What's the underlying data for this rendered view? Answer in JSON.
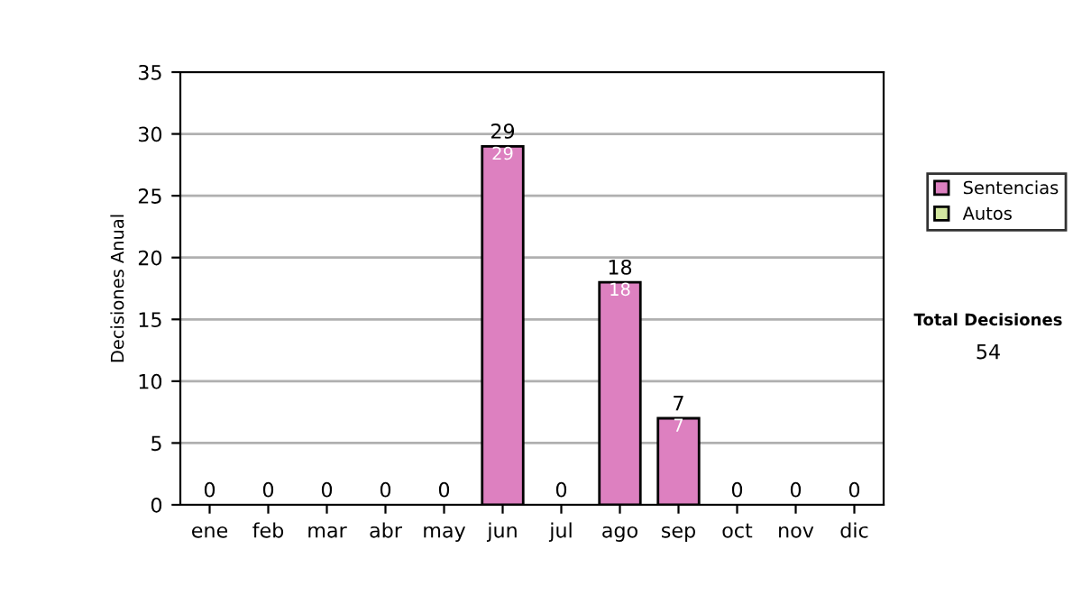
{
  "chart_data": {
    "type": "bar",
    "ylabel": "Decisiones Anual",
    "categories": [
      "ene",
      "feb",
      "mar",
      "abr",
      "may",
      "jun",
      "jul",
      "ago",
      "sep",
      "oct",
      "nov",
      "dic"
    ],
    "stacked": true,
    "series": [
      {
        "name": "Sentencias",
        "color": "#dd80c0",
        "values": [
          0,
          0,
          0,
          0,
          0,
          29,
          0,
          18,
          7,
          0,
          0,
          0
        ],
        "value_labels": [
          null,
          null,
          null,
          null,
          null,
          "29",
          null,
          "18",
          "7",
          null,
          null,
          null
        ]
      },
      {
        "name": "Autos",
        "color": "#d4e8a0",
        "values": [
          0,
          0,
          0,
          0,
          0,
          0,
          0,
          0,
          0,
          0,
          0,
          0
        ]
      }
    ],
    "totals": [
      "0",
      "0",
      "0",
      "0",
      "0",
      "29",
      "0",
      "18",
      "7",
      "0",
      "0",
      "0"
    ],
    "ylim": [
      0,
      35
    ],
    "yticks": [
      0,
      5,
      10,
      15,
      20,
      25,
      30,
      35
    ],
    "grid": "y",
    "legend": "right",
    "annotations": [
      "Total Decisiones",
      "54"
    ]
  }
}
